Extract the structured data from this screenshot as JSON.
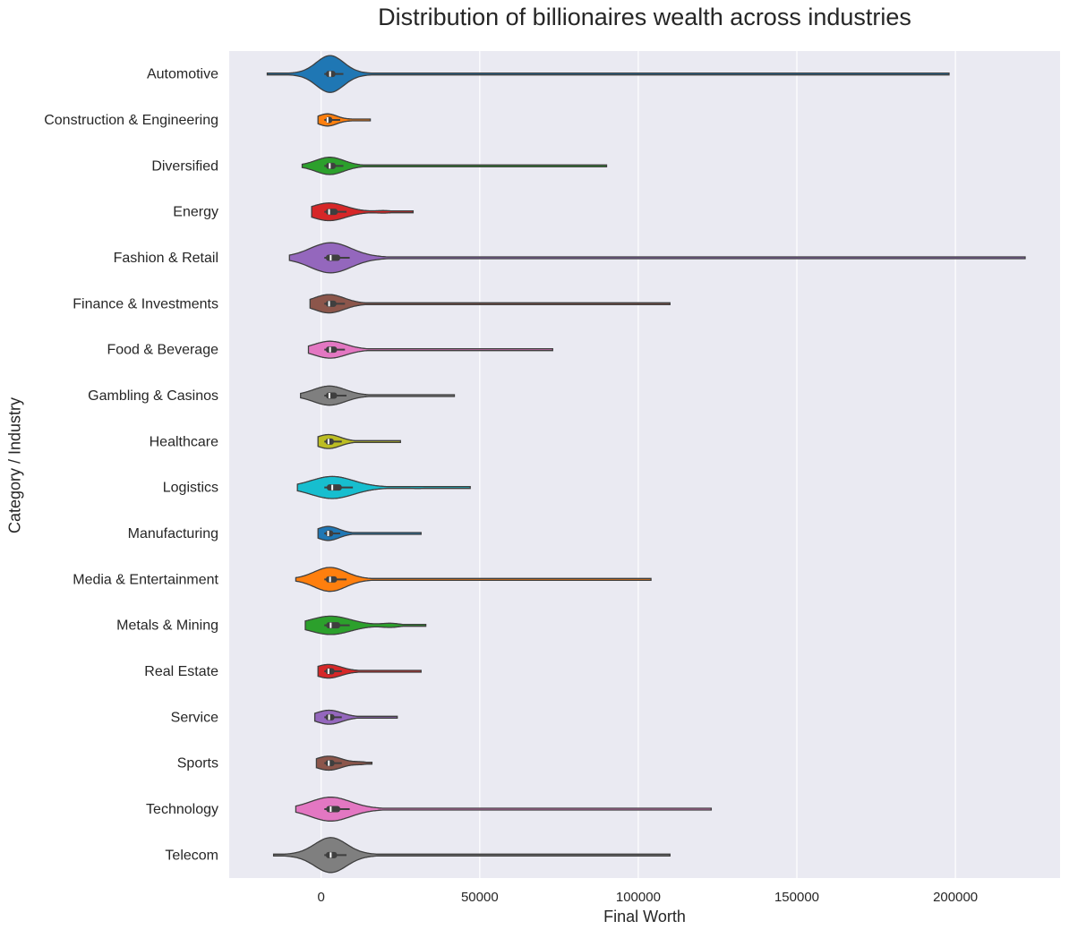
{
  "chart_data": {
    "type": "violin",
    "title": "Distribution of billionaires wealth across industries",
    "xlabel": "Final Worth",
    "ylabel": "Category / Industry",
    "xlim": [
      -29000,
      233000
    ],
    "xticks": [
      0,
      50000,
      100000,
      150000,
      200000
    ],
    "xtick_labels": [
      "0",
      "50000",
      "100000",
      "150000",
      "200000"
    ],
    "grid": true,
    "background": "#eaeaf2",
    "series": [
      {
        "category": "Automotive",
        "color": "#1f77b4",
        "min": 1000,
        "q1": 1500,
        "median": 2800,
        "q3": 4500,
        "whisker": 7000,
        "max": 198000,
        "width": 1.0,
        "bumps": [],
        "kde_min": -17000,
        "kde_max": 198000
      },
      {
        "category": "Construction & Engineering",
        "color": "#ff7f0e",
        "min": 1000,
        "q1": 1400,
        "median": 2000,
        "q3": 3500,
        "whisker": 6000,
        "max": 15500,
        "width": 0.33,
        "bumps": [
          [
            10000,
            0.08
          ]
        ],
        "kde_min": -1000,
        "kde_max": 15500
      },
      {
        "category": "Diversified",
        "color": "#2ca02c",
        "min": 1000,
        "q1": 1500,
        "median": 2700,
        "q3": 4600,
        "whisker": 7000,
        "max": 90000,
        "width": 0.47,
        "bumps": [
          [
            58000,
            0.03
          ]
        ],
        "kde_min": -6000,
        "kde_max": 90000
      },
      {
        "category": "Energy",
        "color": "#d62728",
        "min": 1000,
        "q1": 1500,
        "median": 2500,
        "q3": 5200,
        "whisker": 8000,
        "max": 29000,
        "width": 0.48,
        "bumps": [
          [
            20000,
            0.12
          ]
        ],
        "kde_min": -3000,
        "kde_max": 29000
      },
      {
        "category": "Fashion & Retail",
        "color": "#9467bd",
        "min": 1000,
        "q1": 1500,
        "median": 3000,
        "q3": 6000,
        "whisker": 9000,
        "max": 222000,
        "width": 0.82,
        "bumps": [
          [
            60000,
            0.02
          ]
        ],
        "kde_min": -10000,
        "kde_max": 222000
      },
      {
        "category": "Finance & Investments",
        "color": "#8c564b",
        "min": 1000,
        "q1": 1500,
        "median": 2500,
        "q3": 4800,
        "whisker": 7500,
        "max": 110000,
        "width": 0.5,
        "bumps": [
          [
            30000,
            0.03
          ]
        ],
        "kde_min": -3500,
        "kde_max": 110000
      },
      {
        "category": "Food & Beverage",
        "color": "#e377c2",
        "min": 1000,
        "q1": 1500,
        "median": 2800,
        "q3": 5000,
        "whisker": 7500,
        "max": 73000,
        "width": 0.46,
        "bumps": [
          [
            38000,
            0.03
          ]
        ],
        "kde_min": -4000,
        "kde_max": 73000
      },
      {
        "category": "Gambling & Casinos",
        "color": "#7f7f7f",
        "min": 1000,
        "q1": 1500,
        "median": 2600,
        "q3": 5000,
        "whisker": 8000,
        "max": 42000,
        "width": 0.52,
        "bumps": [
          [
            33000,
            0.08
          ]
        ],
        "kde_min": -6500,
        "kde_max": 42000
      },
      {
        "category": "Healthcare",
        "color": "#bcbd22",
        "min": 1000,
        "q1": 1400,
        "median": 2300,
        "q3": 4000,
        "whisker": 6500,
        "max": 25000,
        "width": 0.38,
        "bumps": [
          [
            16000,
            0.04
          ]
        ],
        "kde_min": -1000,
        "kde_max": 25000
      },
      {
        "category": "Logistics",
        "color": "#17becf",
        "min": 1000,
        "q1": 1800,
        "median": 3500,
        "q3": 6500,
        "whisker": 10000,
        "max": 47000,
        "width": 0.6,
        "bumps": [
          [
            31000,
            0.08
          ]
        ],
        "kde_min": -7500,
        "kde_max": 47000
      },
      {
        "category": "Manufacturing",
        "color": "#1f77b4",
        "min": 1000,
        "q1": 1400,
        "median": 2200,
        "q3": 3800,
        "whisker": 6000,
        "max": 31500,
        "width": 0.38,
        "bumps": [
          [
            22000,
            0.02
          ]
        ],
        "kde_min": -1000,
        "kde_max": 31500
      },
      {
        "category": "Media & Entertainment",
        "color": "#ff7f0e",
        "min": 1000,
        "q1": 1500,
        "median": 2800,
        "q3": 5000,
        "whisker": 8000,
        "max": 104000,
        "width": 0.65,
        "bumps": [
          [
            90000,
            0.04
          ]
        ],
        "kde_min": -8000,
        "kde_max": 104000
      },
      {
        "category": "Metals & Mining",
        "color": "#2ca02c",
        "min": 1000,
        "q1": 1600,
        "median": 3000,
        "q3": 6000,
        "whisker": 9000,
        "max": 33000,
        "width": 0.5,
        "bumps": [
          [
            22000,
            0.2
          ]
        ],
        "kde_min": -5000,
        "kde_max": 33000
      },
      {
        "category": "Real Estate",
        "color": "#d62728",
        "min": 1000,
        "q1": 1400,
        "median": 2300,
        "q3": 4200,
        "whisker": 6500,
        "max": 31500,
        "width": 0.37,
        "bumps": [
          [
            12000,
            0.03
          ]
        ],
        "kde_min": -1000,
        "kde_max": 31500
      },
      {
        "category": "Service",
        "color": "#9467bd",
        "min": 1000,
        "q1": 1400,
        "median": 2500,
        "q3": 4200,
        "whisker": 6500,
        "max": 24000,
        "width": 0.38,
        "bumps": [
          [
            20000,
            0.04
          ]
        ],
        "kde_min": -2000,
        "kde_max": 24000
      },
      {
        "category": "Sports",
        "color": "#8c564b",
        "min": 1000,
        "q1": 1400,
        "median": 2400,
        "q3": 4200,
        "whisker": 6500,
        "max": 16000,
        "width": 0.38,
        "bumps": [
          [
            12500,
            0.14
          ]
        ],
        "kde_min": -1500,
        "kde_max": 16000
      },
      {
        "category": "Technology",
        "color": "#e377c2",
        "min": 1000,
        "q1": 1600,
        "median": 3000,
        "q3": 6000,
        "whisker": 9000,
        "max": 123000,
        "width": 0.65,
        "bumps": [
          [
            28000,
            0.02
          ]
        ],
        "kde_min": -8000,
        "kde_max": 123000
      },
      {
        "category": "Telecom",
        "color": "#7f7f7f",
        "min": 1000,
        "q1": 1500,
        "median": 3000,
        "q3": 5000,
        "whisker": 8000,
        "max": 110000,
        "width": 0.95,
        "bumps": [
          [
            95000,
            0.05
          ]
        ],
        "kde_min": -15000,
        "kde_max": 110000
      }
    ]
  }
}
